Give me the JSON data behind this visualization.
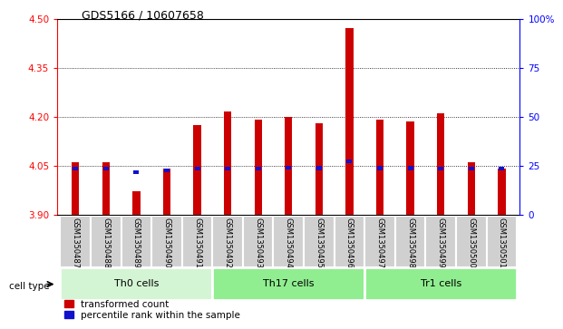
{
  "title": "GDS5166 / 10607658",
  "samples": [
    "GSM1350487",
    "GSM1350488",
    "GSM1350489",
    "GSM1350490",
    "GSM1350491",
    "GSM1350492",
    "GSM1350493",
    "GSM1350494",
    "GSM1350495",
    "GSM1350496",
    "GSM1350497",
    "GSM1350498",
    "GSM1350499",
    "GSM1350500",
    "GSM1350501"
  ],
  "transformed_count": [
    4.06,
    4.06,
    3.97,
    4.04,
    4.175,
    4.215,
    4.19,
    4.2,
    4.18,
    4.47,
    4.19,
    4.185,
    4.21,
    4.06,
    4.04
  ],
  "percentile_rank_value": [
    4.04,
    4.04,
    4.03,
    4.035,
    4.04,
    4.04,
    4.04,
    4.043,
    4.042,
    4.062,
    4.042,
    4.042,
    4.04,
    4.04,
    4.04
  ],
  "ylim_left": [
    3.9,
    4.5
  ],
  "ylim_right": [
    0,
    100
  ],
  "y_ticks_left": [
    3.9,
    4.05,
    4.2,
    4.35,
    4.5
  ],
  "y_ticks_right": [
    0,
    25,
    50,
    75,
    100
  ],
  "bar_color": "#cc0000",
  "blue_color": "#1111cc",
  "bar_bottom": 3.9,
  "bar_width": 0.25,
  "blue_bar_height": 0.012,
  "blue_bar_width": 0.18,
  "legend_labels": [
    "transformed count",
    "percentile rank within the sample"
  ],
  "cell_type_label": "cell type",
  "group_defs": [
    [
      0,
      4,
      "Th0 cells",
      "#d4f5d4"
    ],
    [
      5,
      9,
      "Th17 cells",
      "#90ee90"
    ],
    [
      10,
      14,
      "Tr1 cells",
      "#90ee90"
    ]
  ],
  "group_border_color": "#ffffff",
  "label_bg_color": "#d0d0d0",
  "label_border_color": "#ffffff"
}
